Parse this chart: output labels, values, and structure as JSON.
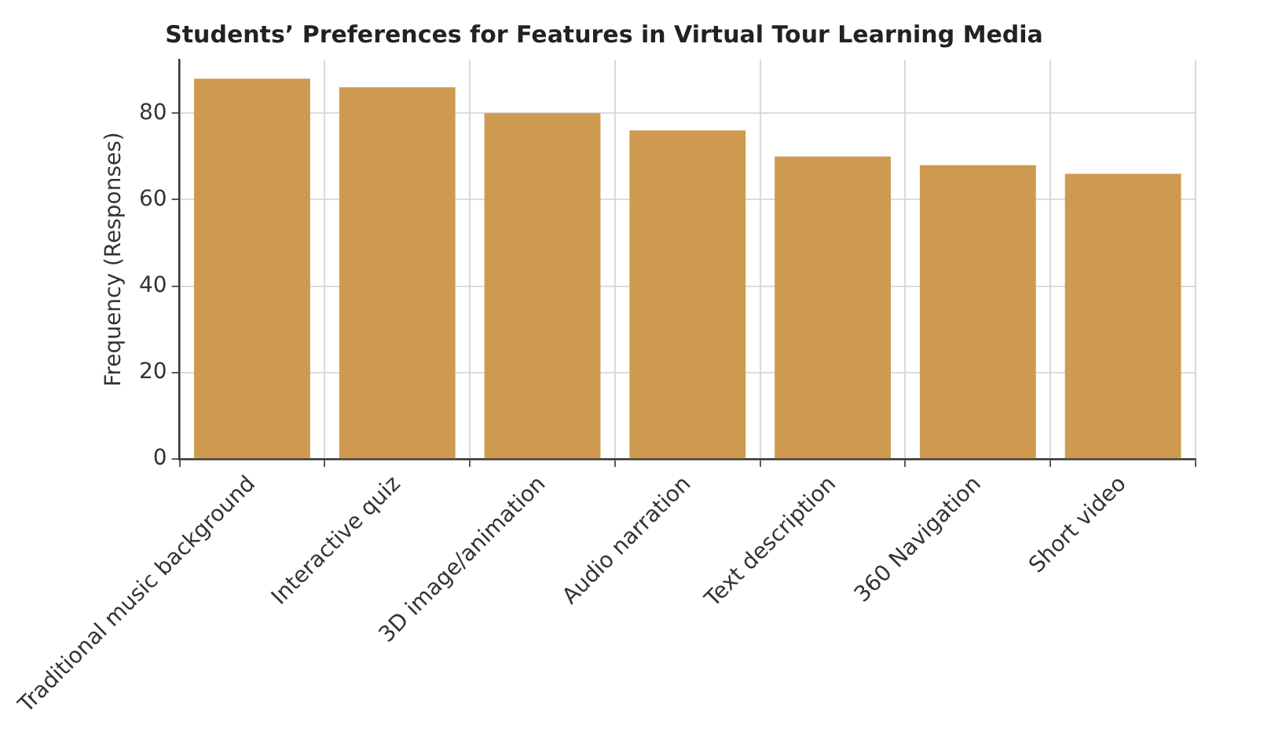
{
  "chart_data": {
    "type": "bar",
    "title": "Students’ Preferences for Features in Virtual Tour Learning Media",
    "ylabel": "Frequency (Responses)",
    "categories": [
      "Traditional music background",
      "Interactive quiz",
      "3D image/animation",
      "Audio narration",
      "Text description",
      "360 Navigation",
      "Short video"
    ],
    "values": [
      88,
      86,
      80,
      76,
      70,
      68,
      66
    ],
    "color": "#cd9a4f",
    "ylim": [
      0,
      92.4
    ],
    "yticks": [
      0,
      20,
      40,
      60,
      80
    ],
    "grid": true,
    "legend": false
  }
}
